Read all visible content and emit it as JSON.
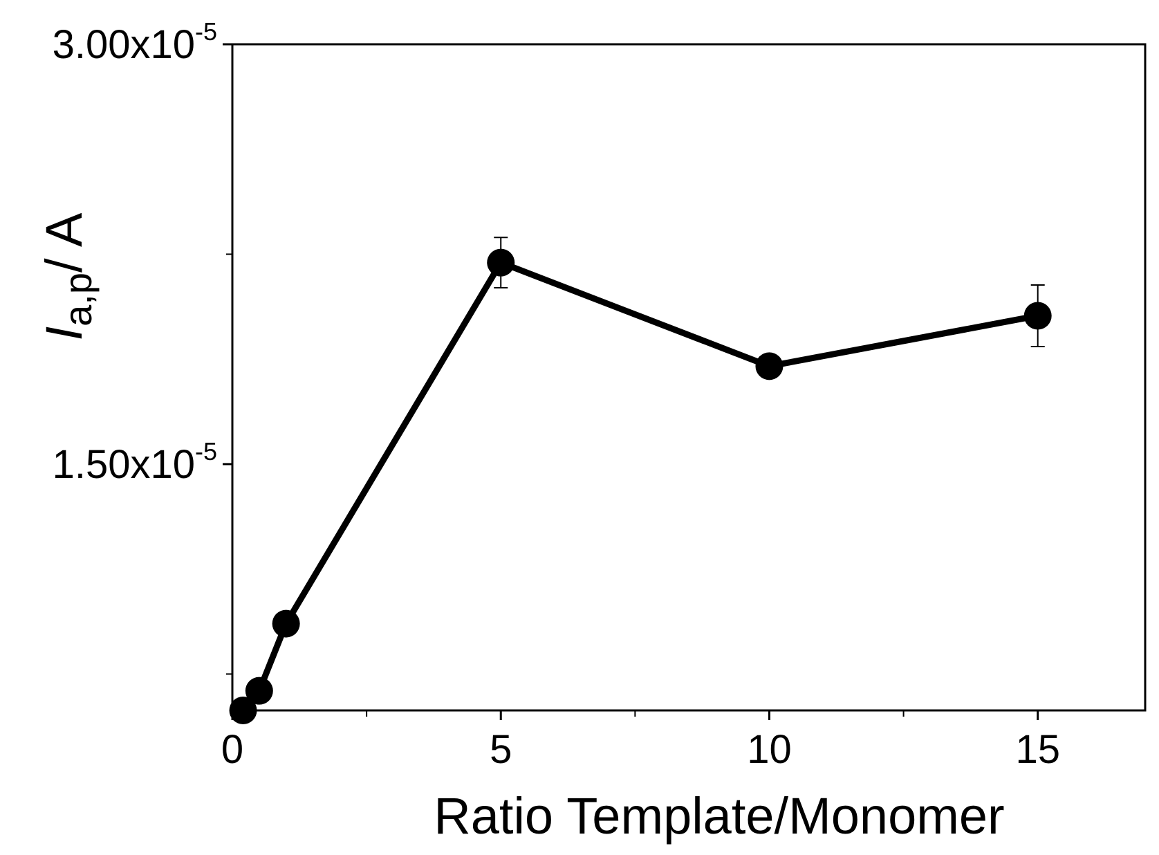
{
  "chart_data": {
    "type": "line",
    "xlabel": "Ratio Template/Monomer",
    "ylabel": {
      "italic_part": "I",
      "subscript_part": "a,p",
      "unit_part": "/ A"
    },
    "xlim": [
      0,
      17
    ],
    "ylim": [
      6.2e-06,
      3e-05
    ],
    "x_ticks": [
      {
        "value": 0,
        "label": "0"
      },
      {
        "value": 5,
        "label": "5"
      },
      {
        "value": 10,
        "label": "10"
      },
      {
        "value": 15,
        "label": "15"
      }
    ],
    "x_minor_ticks": [
      2.5,
      7.5,
      12.5
    ],
    "y_ticks": [
      {
        "value": 1.5e-05,
        "mantissa": "1.50x10",
        "exponent": "-5"
      },
      {
        "value": 3e-05,
        "mantissa": "3.00x10",
        "exponent": "-5"
      }
    ],
    "y_minor_ticks": [
      7.5e-06,
      2.25e-05
    ],
    "grid": false,
    "series": [
      {
        "points": [
          {
            "x": 0.2,
            "y": 6.2e-06,
            "err": 0
          },
          {
            "x": 0.5,
            "y": 6.9e-06,
            "err": 0
          },
          {
            "x": 1,
            "y": 9.3e-06,
            "err": 0
          },
          {
            "x": 5,
            "y": 2.22e-05,
            "err": 9e-07
          },
          {
            "x": 10,
            "y": 1.85e-05,
            "err": 4e-07
          },
          {
            "x": 15,
            "y": 2.03e-05,
            "err": 1.1e-06
          }
        ],
        "color": "#000000"
      }
    ]
  }
}
